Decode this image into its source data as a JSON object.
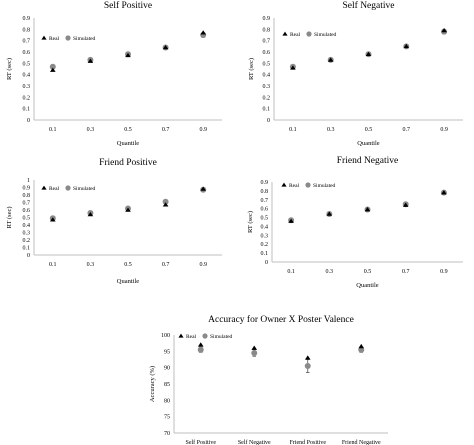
{
  "legend": {
    "real": "Real",
    "simulated": "Simulated"
  },
  "colors": {
    "real": "#000000",
    "simulated": "#8a8a8a",
    "axis": "#bfbfbf",
    "error": "#555555"
  },
  "chart_data": [
    {
      "type": "scatter",
      "title": "Self Positive",
      "xlabel": "Quantile",
      "ylabel": "RT (sec)",
      "categories": [
        "0.1",
        "0.3",
        "0.5",
        "0.7",
        "0.9"
      ],
      "yticks": [
        "0",
        "0.1",
        "0.2",
        "0.3",
        "0.4",
        "0.5",
        "0.6",
        "0.7",
        "0.8",
        "0.9"
      ],
      "ylim": [
        0,
        0.9
      ],
      "legend_position": "top-left",
      "series": [
        {
          "name": "Real",
          "marker": "triangle",
          "values": [
            0.44,
            0.52,
            0.57,
            0.64,
            0.77
          ]
        },
        {
          "name": "Simulated",
          "marker": "circle",
          "values": [
            0.47,
            0.53,
            0.58,
            0.64,
            0.75
          ],
          "error": [
            0.012,
            0.012,
            0.012,
            0.015,
            0.02
          ]
        }
      ]
    },
    {
      "type": "scatter",
      "title": "Self Negative",
      "xlabel": "Quantile",
      "ylabel": "RT (sec)",
      "categories": [
        "0.1",
        "0.3",
        "0.5",
        "0.7",
        "0.9"
      ],
      "yticks": [
        "0",
        "0.1",
        "0.2",
        "0.3",
        "0.4",
        "0.5",
        "0.6",
        "0.7",
        "0.8",
        "0.9"
      ],
      "ylim": [
        0,
        0.9
      ],
      "legend_position": "top-left",
      "series": [
        {
          "name": "Real",
          "marker": "triangle",
          "values": [
            0.46,
            0.53,
            0.58,
            0.65,
            0.79
          ]
        },
        {
          "name": "Simulated",
          "marker": "circle",
          "values": [
            0.47,
            0.53,
            0.58,
            0.65,
            0.78
          ],
          "error": [
            0.012,
            0.012,
            0.012,
            0.015,
            0.02
          ]
        }
      ]
    },
    {
      "type": "scatter",
      "title": "Friend Positive",
      "xlabel": "Quantile",
      "ylabel": "RT (sec)",
      "categories": [
        "0.1",
        "0.3",
        "0.5",
        "0.7",
        "0.9"
      ],
      "yticks": [
        "0",
        "0.1",
        "0.2",
        "0.3",
        "0.4",
        "0.5",
        "0.6",
        "0.7",
        "0.8",
        "0.9",
        "1"
      ],
      "ylim": [
        0,
        1
      ],
      "legend_position": "top-left",
      "series": [
        {
          "name": "Real",
          "marker": "triangle",
          "values": [
            0.47,
            0.54,
            0.6,
            0.67,
            0.88
          ]
        },
        {
          "name": "Simulated",
          "marker": "circle",
          "values": [
            0.49,
            0.56,
            0.62,
            0.71,
            0.87
          ],
          "error": [
            0.015,
            0.015,
            0.02,
            0.02,
            0.025
          ]
        }
      ]
    },
    {
      "type": "scatter",
      "title": "Friend Negative",
      "xlabel": "Quantile",
      "ylabel": "RT (sec)",
      "categories": [
        "0.1",
        "0.3",
        "0.5",
        "0.7",
        "0.9"
      ],
      "yticks": [
        "0",
        "0.1",
        "0.2",
        "0.3",
        "0.4",
        "0.5",
        "0.6",
        "0.7",
        "0.8",
        "0.9"
      ],
      "ylim": [
        0,
        0.9
      ],
      "legend_position": "top-left",
      "series": [
        {
          "name": "Real",
          "marker": "triangle",
          "values": [
            0.46,
            0.54,
            0.59,
            0.64,
            0.78
          ]
        },
        {
          "name": "Simulated",
          "marker": "circle",
          "values": [
            0.47,
            0.54,
            0.59,
            0.65,
            0.78
          ],
          "error": [
            0.012,
            0.012,
            0.015,
            0.015,
            0.02
          ]
        }
      ]
    },
    {
      "type": "scatter",
      "title": "Accuracy for Owner X Poster Valence",
      "xlabel": "",
      "ylabel": "Accuracy (%)",
      "categories": [
        "Self Positive",
        "Self Negative",
        "Friend Positive",
        "Friend Negative"
      ],
      "yticks": [
        "70",
        "75",
        "80",
        "85",
        "90",
        "95",
        "100"
      ],
      "ylim": [
        70,
        100
      ],
      "legend_position": "top-left",
      "series": [
        {
          "name": "Real",
          "marker": "triangle",
          "values": [
            97,
            96,
            93,
            96.5
          ]
        },
        {
          "name": "Simulated",
          "marker": "circle",
          "values": [
            95.5,
            94.5,
            90.5,
            95.5
          ],
          "error": [
            0.8,
            1.0,
            2.0,
            0.8
          ]
        }
      ]
    }
  ]
}
